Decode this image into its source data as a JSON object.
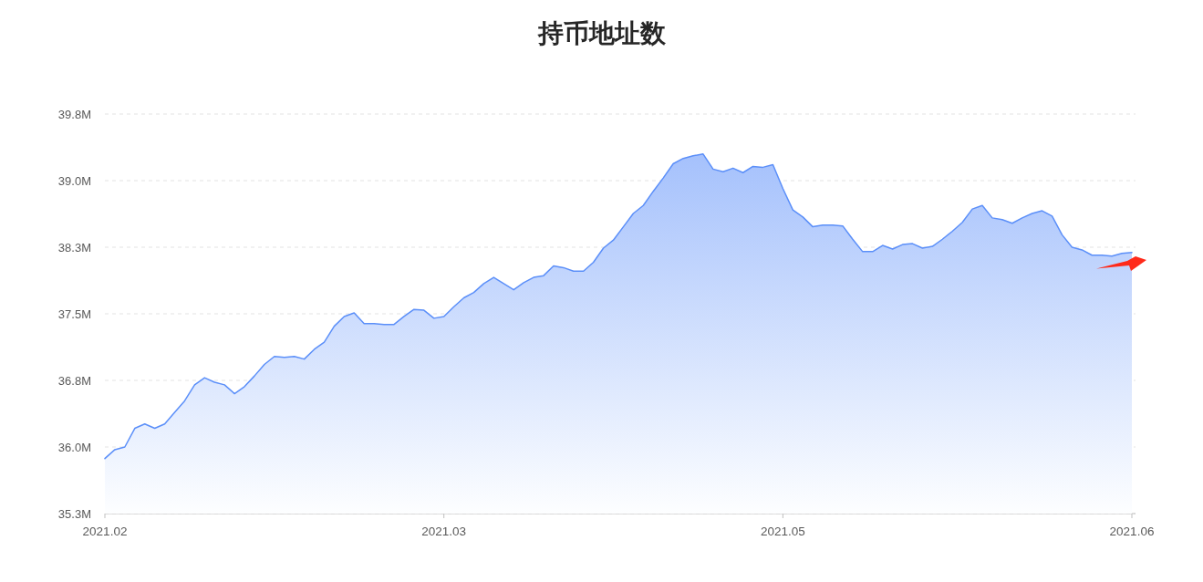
{
  "chart_data": {
    "type": "area",
    "title": "持币地址数",
    "categories": [
      "2021.02",
      null,
      null,
      null,
      null,
      null,
      null,
      null,
      null,
      null,
      null,
      null,
      null,
      null,
      null,
      null,
      null,
      null,
      null,
      null,
      null,
      null,
      null,
      null,
      null,
      null,
      null,
      null,
      null,
      null,
      null,
      null,
      null,
      null,
      "2021.03",
      null,
      null,
      null,
      null,
      null,
      null,
      null,
      null,
      null,
      null,
      null,
      null,
      null,
      null,
      null,
      null,
      null,
      null,
      null,
      null,
      null,
      null,
      null,
      null,
      null,
      null,
      null,
      null,
      null,
      null,
      null,
      null,
      null,
      "2021.05",
      null,
      null,
      null,
      null,
      null,
      null,
      null,
      null,
      null,
      null,
      null,
      null,
      null,
      null,
      null,
      null,
      null,
      null,
      null,
      null,
      null,
      null,
      null,
      null,
      null,
      null,
      null,
      null,
      null,
      null,
      null,
      null,
      null,
      null,
      "2021.06"
    ],
    "series": [
      {
        "color": "#5b8ff9",
        "values": [
          35.87,
          35.97,
          36.0,
          36.21,
          36.26,
          36.21,
          36.26,
          36.39,
          36.52,
          36.7,
          36.78,
          36.73,
          36.7,
          36.6,
          36.68,
          36.8,
          36.93,
          37.02,
          37.01,
          37.02,
          36.99,
          37.1,
          37.18,
          37.36,
          37.47,
          37.51,
          37.39,
          37.39,
          37.38,
          37.38,
          37.47,
          37.55,
          37.54,
          37.45,
          37.47,
          37.58,
          37.68,
          37.74,
          37.84,
          37.91,
          37.84,
          37.77,
          37.85,
          37.91,
          37.93,
          38.04,
          38.02,
          37.98,
          37.98,
          38.08,
          38.24,
          38.33,
          38.48,
          38.63,
          38.72,
          38.88,
          39.03,
          39.19,
          39.25,
          39.28,
          39.3,
          39.13,
          39.1,
          39.14,
          39.09,
          39.16,
          39.15,
          39.18,
          38.91,
          38.67,
          38.59,
          38.48,
          38.5,
          38.5,
          38.49,
          38.34,
          38.2,
          38.2,
          38.27,
          38.23,
          38.28,
          38.29,
          38.24,
          38.26,
          38.34,
          38.43,
          38.53,
          38.68,
          38.72,
          38.58,
          38.56,
          38.52,
          38.58,
          38.63,
          38.66,
          38.6,
          38.39,
          38.25,
          38.22,
          38.16,
          38.16,
          38.15,
          38.18,
          38.19
        ]
      }
    ],
    "ylim": [
      35.25,
      39.75
    ],
    "yticks": [
      {
        "value": 35.25,
        "label": "35.3M"
      },
      {
        "value": 36,
        "label": "36.0M"
      },
      {
        "value": 36.75,
        "label": "36.8M"
      },
      {
        "value": 37.5,
        "label": "37.5M"
      },
      {
        "value": 38.25,
        "label": "38.3M"
      },
      {
        "value": 39,
        "label": "39.0M"
      },
      {
        "value": 39.75,
        "label": "39.8M"
      }
    ],
    "grid": "y"
  }
}
